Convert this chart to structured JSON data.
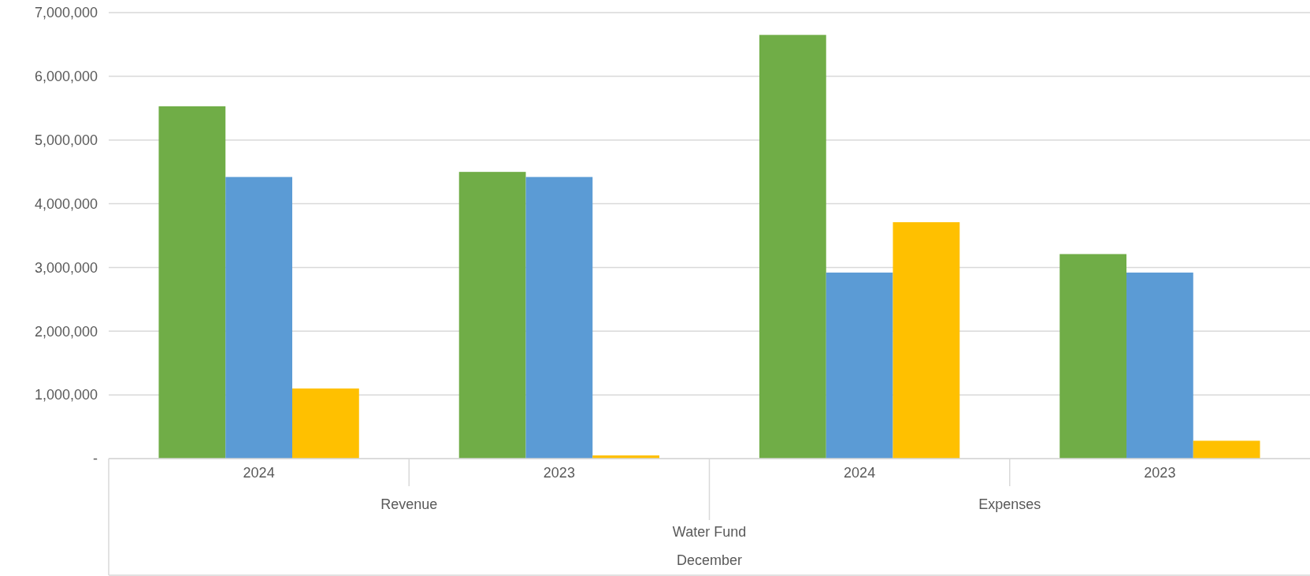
{
  "chart_data": {
    "type": "bar",
    "categories": [
      "2024",
      "2023",
      "2024",
      "2023"
    ],
    "series": [
      {
        "color": "#70ad47",
        "values": [
          5530000,
          4500000,
          6650000,
          3210000
        ]
      },
      {
        "color": "#5b9bd5",
        "values": [
          4420000,
          4420000,
          2920000,
          2920000
        ]
      },
      {
        "color": "#ffc000",
        "values": [
          1100000,
          50000,
          3710000,
          280000
        ]
      }
    ],
    "ylim": [
      0,
      7000000
    ],
    "yticks": [
      {
        "value": 0,
        "label": "-"
      },
      {
        "value": 1000000,
        "label": "1,000,000"
      },
      {
        "value": 2000000,
        "label": "2,000,000"
      },
      {
        "value": 3000000,
        "label": "3,000,000"
      },
      {
        "value": 4000000,
        "label": "4,000,000"
      },
      {
        "value": 5000000,
        "label": "5,000,000"
      },
      {
        "value": 6000000,
        "label": "6,000,000"
      },
      {
        "value": 7000000,
        "label": "7,000,000"
      }
    ],
    "grid": "y",
    "annotations": [
      "Revenue",
      "Expenses",
      "Water Fund",
      "December"
    ]
  }
}
